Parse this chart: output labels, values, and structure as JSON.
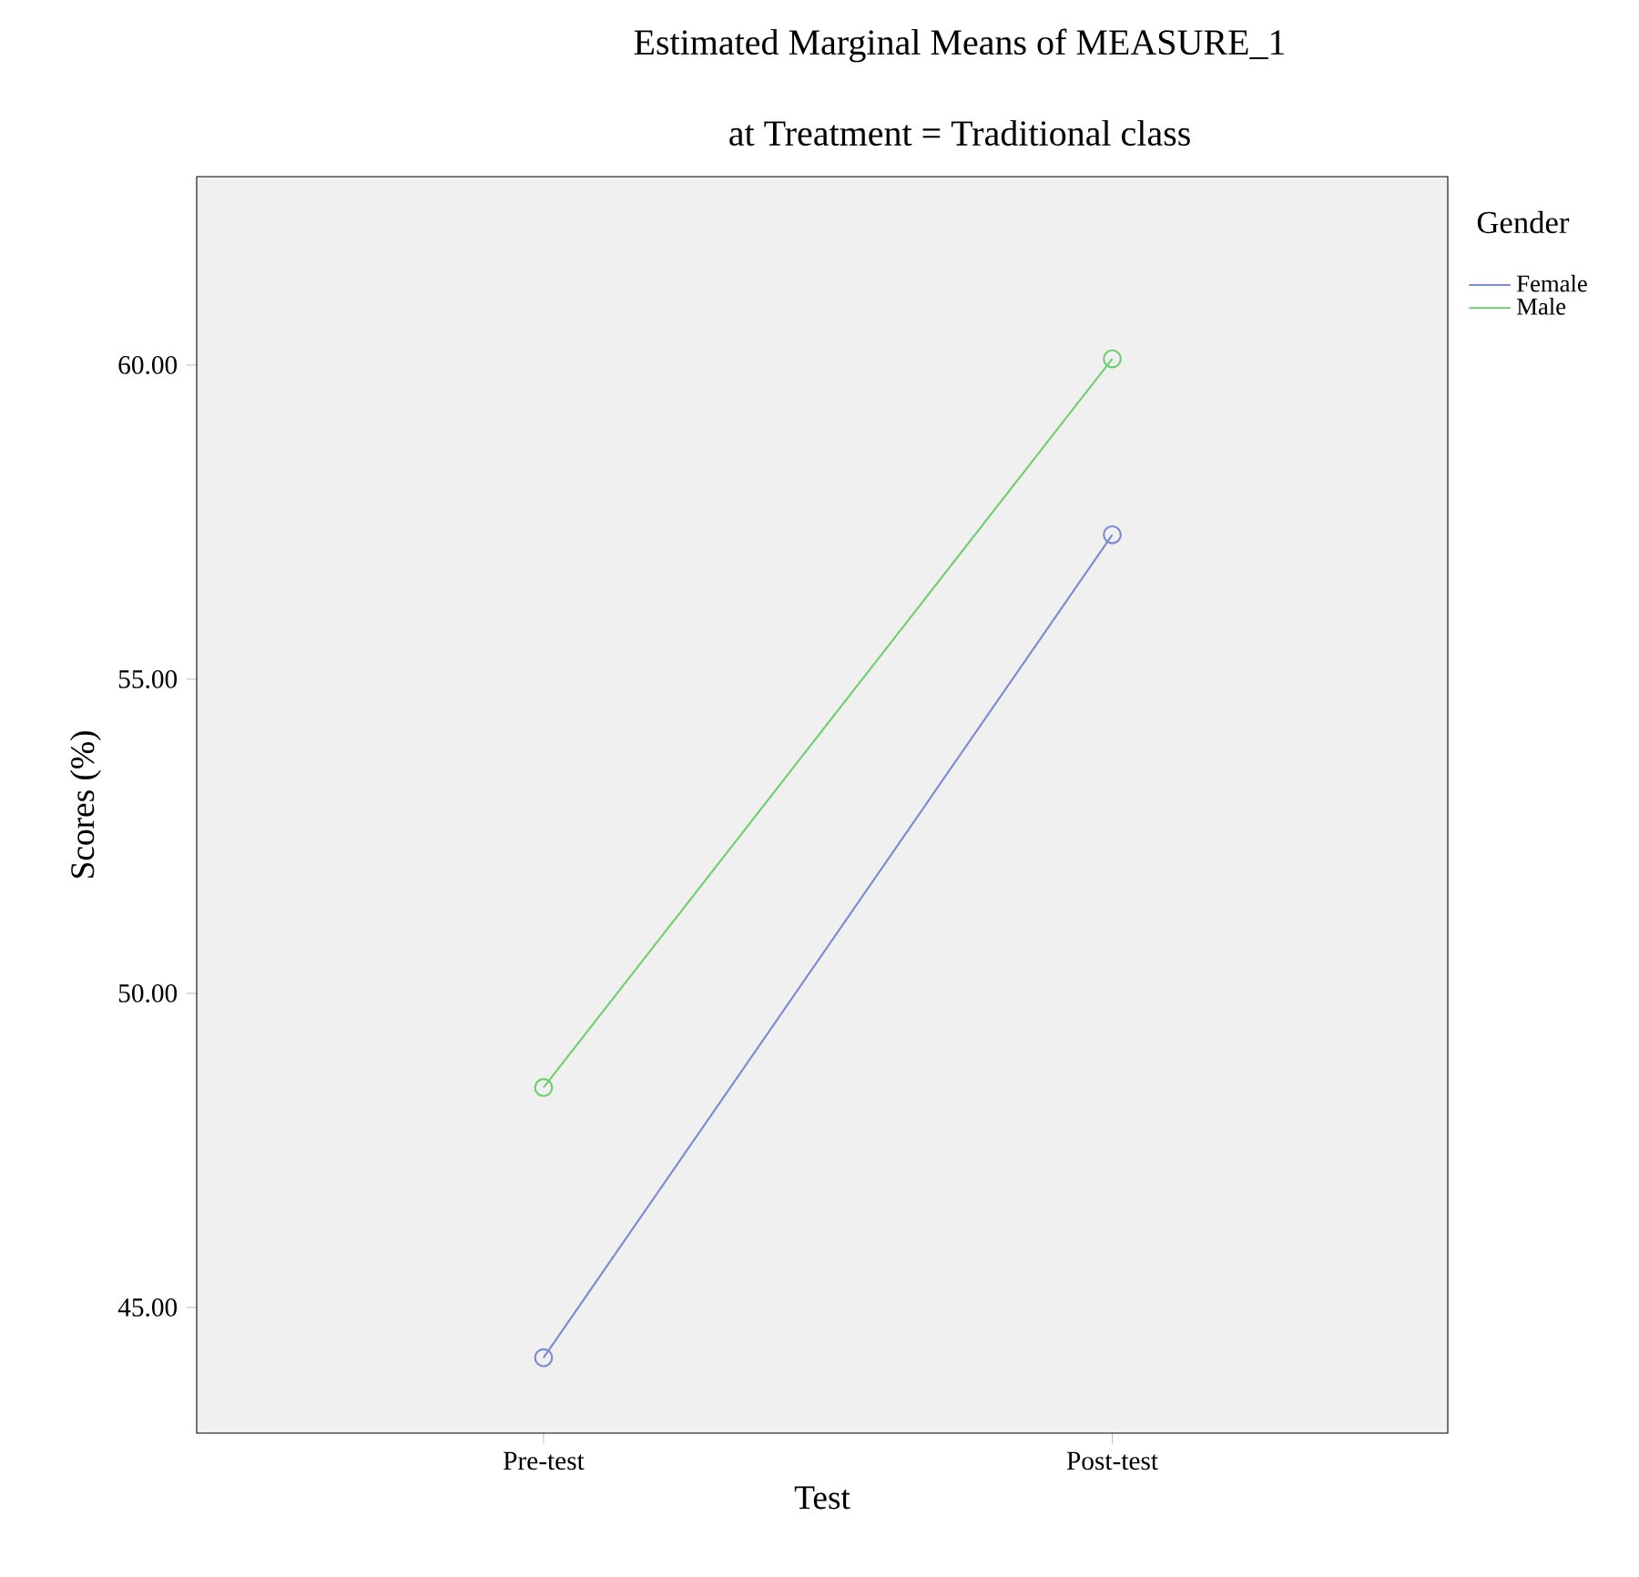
{
  "chart_data": {
    "type": "line",
    "title": "Estimated Marginal Means of MEASURE_1",
    "subtitle": "at Treatment = Traditional class",
    "xlabel": "Test",
    "ylabel": "Scores (%)",
    "legend_title": "Gender",
    "categories": [
      "Pre-test",
      "Post-test"
    ],
    "series": [
      {
        "name": "Female",
        "color": "#7b8bd1",
        "values": [
          44.2,
          57.3
        ]
      },
      {
        "name": "Male",
        "color": "#6fcf6f",
        "values": [
          48.5,
          60.1
        ]
      }
    ],
    "ylim": [
      43,
      63
    ],
    "yticks": [
      {
        "value": 45,
        "label": "45.00"
      },
      {
        "value": 50,
        "label": "50.00"
      },
      {
        "value": 55,
        "label": "55.00"
      },
      {
        "value": 60,
        "label": "60.00"
      }
    ],
    "grid": false,
    "legend": "top right",
    "marker": "circle",
    "line_style": "solid"
  }
}
